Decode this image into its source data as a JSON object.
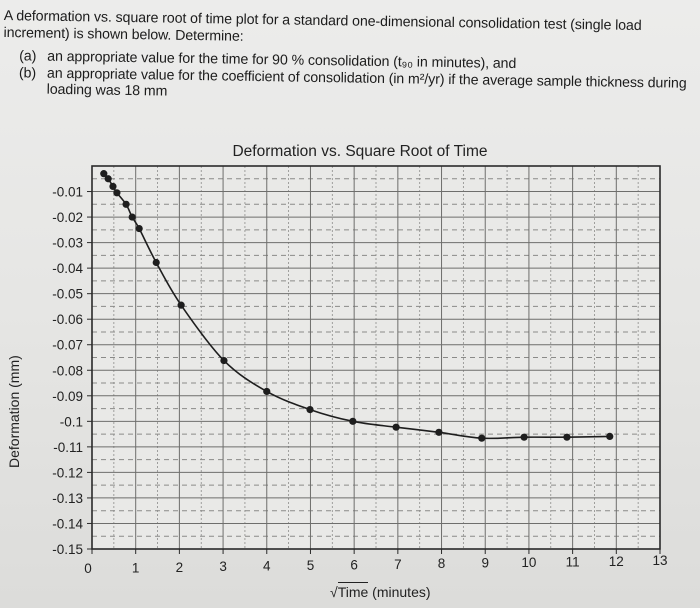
{
  "problem": {
    "intro": "A deformation vs. square root of time plot for a standard one-dimensional consolidation test (single load increment) is shown below. Determine:",
    "parts": [
      {
        "label": "(a)",
        "text": "an appropriate value for the time for 90 % consolidation (t₉₀ in minutes), and"
      },
      {
        "label": "(b)",
        "text": "an appropriate value for the coefficient of consolidation (in m²/yr) if the average sample thickness during loading was 18 mm"
      }
    ]
  },
  "chart_data": {
    "type": "line",
    "title": "Deformation vs. Square Root of Time",
    "xlabel": "√Time (minutes)",
    "xlabel_radical": "√",
    "xlabel_rest": "Time",
    "xlabel_unit": " (minutes)",
    "ylabel": "Deformation (mm)",
    "xlim": [
      0,
      13
    ],
    "ylim": [
      -0.15,
      0
    ],
    "x_ticks": [
      "0",
      "1",
      "2",
      "3",
      "4",
      "5",
      "6",
      "7",
      "8",
      "9",
      "10",
      "11",
      "12",
      "13"
    ],
    "y_ticks": [
      "-0.01",
      "-0.02",
      "-0.03",
      "-0.04",
      "-0.05",
      "-0.06",
      "-0.07",
      "-0.08",
      "-0.09",
      "-0.1",
      "-0.11",
      "-0.12",
      "-0.13",
      "-0.14",
      "-0.15"
    ],
    "grid": {
      "major": true,
      "minor_dashed": true,
      "x_minor_step": 0.5,
      "y_minor_step": 0.005
    },
    "series": [
      {
        "name": "Deformation",
        "marker": "circle",
        "color": "#1e1e1e",
        "x": [
          0.27,
          0.37,
          0.48,
          0.57,
          0.78,
          0.92,
          1.08,
          1.47,
          2.04,
          3.02,
          4.0,
          4.99,
          5.97,
          6.96,
          7.94,
          8.92,
          9.89,
          10.87,
          11.85
        ],
        "y": [
          -0.003,
          -0.005,
          -0.008,
          -0.0105,
          -0.015,
          -0.02,
          -0.0245,
          -0.0378,
          -0.0545,
          -0.0762,
          -0.0883,
          -0.0954,
          -0.1,
          -0.1023,
          -0.1043,
          -0.1066,
          -0.1062,
          -0.1062,
          -0.1059
        ]
      }
    ]
  }
}
